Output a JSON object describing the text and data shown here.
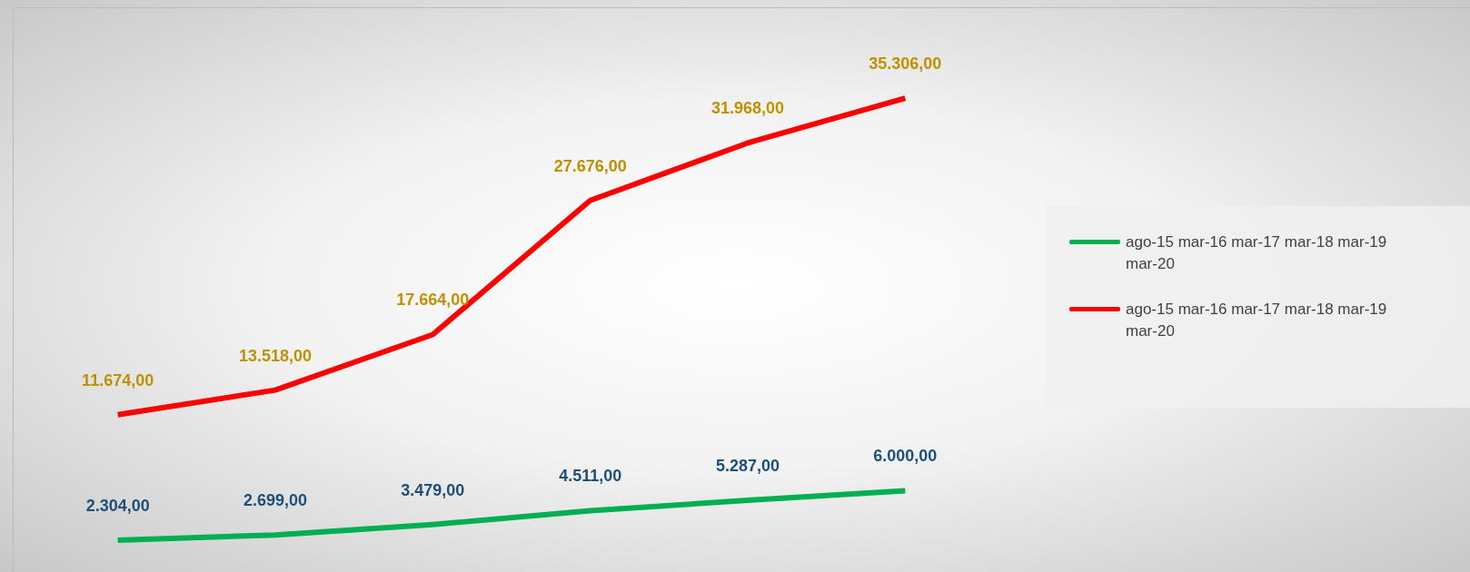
{
  "chart_data": {
    "type": "line",
    "categories": [
      null,
      null,
      null,
      null,
      null,
      null
    ],
    "series": [
      {
        "name": "ago-15 mar-16 mar-17 mar-18 mar-19 mar-20",
        "color": "#00b050",
        "values": [
          2304,
          2699,
          3479,
          4511,
          5287,
          6000
        ],
        "value_labels": [
          "2.304,00",
          "2.699,00",
          "3.479,00",
          "4.511,00",
          "5.287,00",
          "6.000,00"
        ]
      },
      {
        "name": "ago-15 mar-16 mar-17 mar-18 mar-19 mar-20",
        "color": "#ff0000",
        "values": [
          11674,
          13518,
          17664,
          27676,
          31968,
          35306
        ],
        "value_labels": [
          "11.674,00",
          "13.518,00",
          "17.664,00",
          "27.676,00",
          "31.968,00",
          "35.306,00"
        ]
      }
    ],
    "tick_labels": false,
    "legend": "right",
    "line_style": "solid"
  }
}
